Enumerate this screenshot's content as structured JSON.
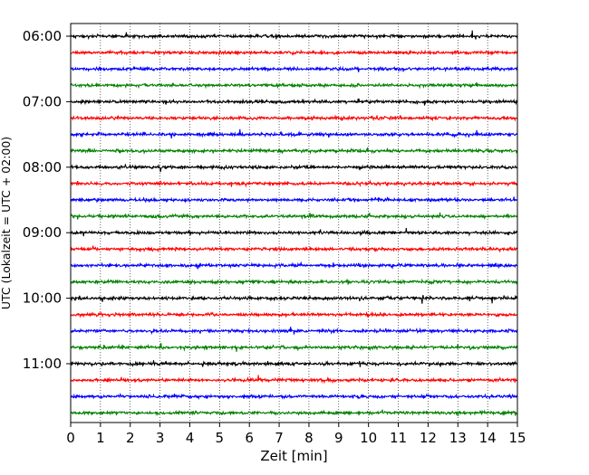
{
  "chart_data": {
    "type": "line",
    "xlabel": "Zeit  [min]",
    "ylabel": "UTC (Lokalzeit = UTC + 02:00)",
    "xlim": [
      0,
      15
    ],
    "x_ticks": [
      "0",
      "1",
      "2",
      "3",
      "4",
      "5",
      "6",
      "7",
      "8",
      "9",
      "10",
      "11",
      "12",
      "13",
      "14",
      "15"
    ],
    "y_tick_labels": [
      "06:00",
      "07:00",
      "08:00",
      "09:00",
      "10:00",
      "11:00"
    ],
    "grid": "vertical dotted lines at each minute",
    "trace_interval_minutes": 15,
    "start_time_utc": "06:00",
    "trace_count": 24,
    "trace_colors": [
      "#000000",
      "#ff0000",
      "#0000ff",
      "#008000"
    ],
    "series": [
      {
        "start": "06:00",
        "color": "#000000"
      },
      {
        "start": "06:15",
        "color": "#ff0000"
      },
      {
        "start": "06:30",
        "color": "#0000ff"
      },
      {
        "start": "06:45",
        "color": "#008000"
      },
      {
        "start": "07:00",
        "color": "#000000"
      },
      {
        "start": "07:15",
        "color": "#ff0000"
      },
      {
        "start": "07:30",
        "color": "#0000ff"
      },
      {
        "start": "07:45",
        "color": "#008000"
      },
      {
        "start": "08:00",
        "color": "#000000"
      },
      {
        "start": "08:15",
        "color": "#ff0000"
      },
      {
        "start": "08:30",
        "color": "#0000ff"
      },
      {
        "start": "08:45",
        "color": "#008000"
      },
      {
        "start": "09:00",
        "color": "#000000"
      },
      {
        "start": "09:15",
        "color": "#ff0000"
      },
      {
        "start": "09:30",
        "color": "#0000ff"
      },
      {
        "start": "09:45",
        "color": "#008000"
      },
      {
        "start": "10:00",
        "color": "#000000"
      },
      {
        "start": "10:15",
        "color": "#ff0000"
      },
      {
        "start": "10:30",
        "color": "#0000ff"
      },
      {
        "start": "10:45",
        "color": "#008000"
      },
      {
        "start": "11:00",
        "color": "#000000"
      },
      {
        "start": "11:15",
        "color": "#ff0000"
      },
      {
        "start": "11:30",
        "color": "#0000ff"
      },
      {
        "start": "11:45",
        "color": "#008000"
      }
    ]
  }
}
